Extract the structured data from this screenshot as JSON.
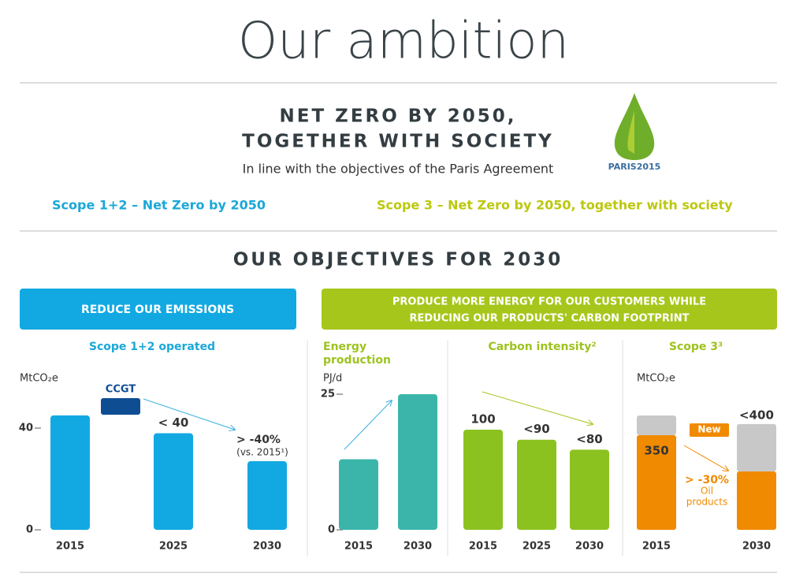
{
  "header": {
    "title": "Our ambition",
    "headline": [
      "NET ZERO BY 2050,",
      "TOGETHER WITH SOCIETY"
    ],
    "subheadline": "In line with the objectives of the Paris Agreement",
    "logo_text": "PARIS2015"
  },
  "scopes": [
    "Scope 1+2 – Net Zero by 2050",
    "Scope 3 – Net Zero by 2050, together with society"
  ],
  "objectives": {
    "title": "OUR OBJECTIVES FOR 2030",
    "boxes": [
      [
        "REDUCE OUR EMISSIONS"
      ],
      [
        "PRODUCE MORE ENERGY FOR OUR CUSTOMERS WHILE",
        "REDUCING OUR PRODUCTS' CARBON FOOTPRINT"
      ]
    ]
  },
  "chart_data": [
    {
      "type": "bar",
      "title": [
        "Scope 1+2 operated"
      ],
      "unit": "MtCO₂e",
      "categories": [
        "2015",
        "2025",
        "2030"
      ],
      "values": [
        45,
        38,
        27
      ],
      "value_labels": [
        null,
        "< 40",
        null
      ],
      "color": "#12a9e3",
      "ylim": [
        0,
        50
      ],
      "yticks": [
        0,
        40
      ],
      "annotations": [
        "CCGT",
        "> -40%",
        "(vs. 2015¹)"
      ]
    },
    {
      "type": "bar",
      "title": [
        "Energy",
        "production"
      ],
      "unit": "PJ/d",
      "categories": [
        "2015",
        "2030"
      ],
      "values": [
        13,
        25
      ],
      "color": "#3bb5aa",
      "ylim": [
        0,
        25
      ],
      "yticks": [
        0,
        25
      ]
    },
    {
      "type": "bar",
      "title": [
        "Carbon intensity²"
      ],
      "categories": [
        "2015",
        "2025",
        "2030"
      ],
      "values": [
        100,
        90,
        80
      ],
      "value_labels": [
        "100",
        "<90",
        "<80"
      ],
      "color": "#8cc21f",
      "ylim": [
        0,
        100
      ]
    },
    {
      "type": "stacked_bar",
      "title": [
        "Scope 3³"
      ],
      "unit": "MtCO₂e",
      "categories": [
        "2015",
        "2030"
      ],
      "series": [
        {
          "color": "#f08a00",
          "values": [
            350,
            216
          ],
          "value_labels": [
            "350",
            null
          ]
        },
        {
          "color": "#c8c8c8",
          "values": [
            73,
            175
          ]
        }
      ],
      "ylim": [
        0,
        450
      ],
      "annotations": [
        "<400",
        "New",
        "> -30%",
        "Oil",
        "products"
      ]
    }
  ]
}
